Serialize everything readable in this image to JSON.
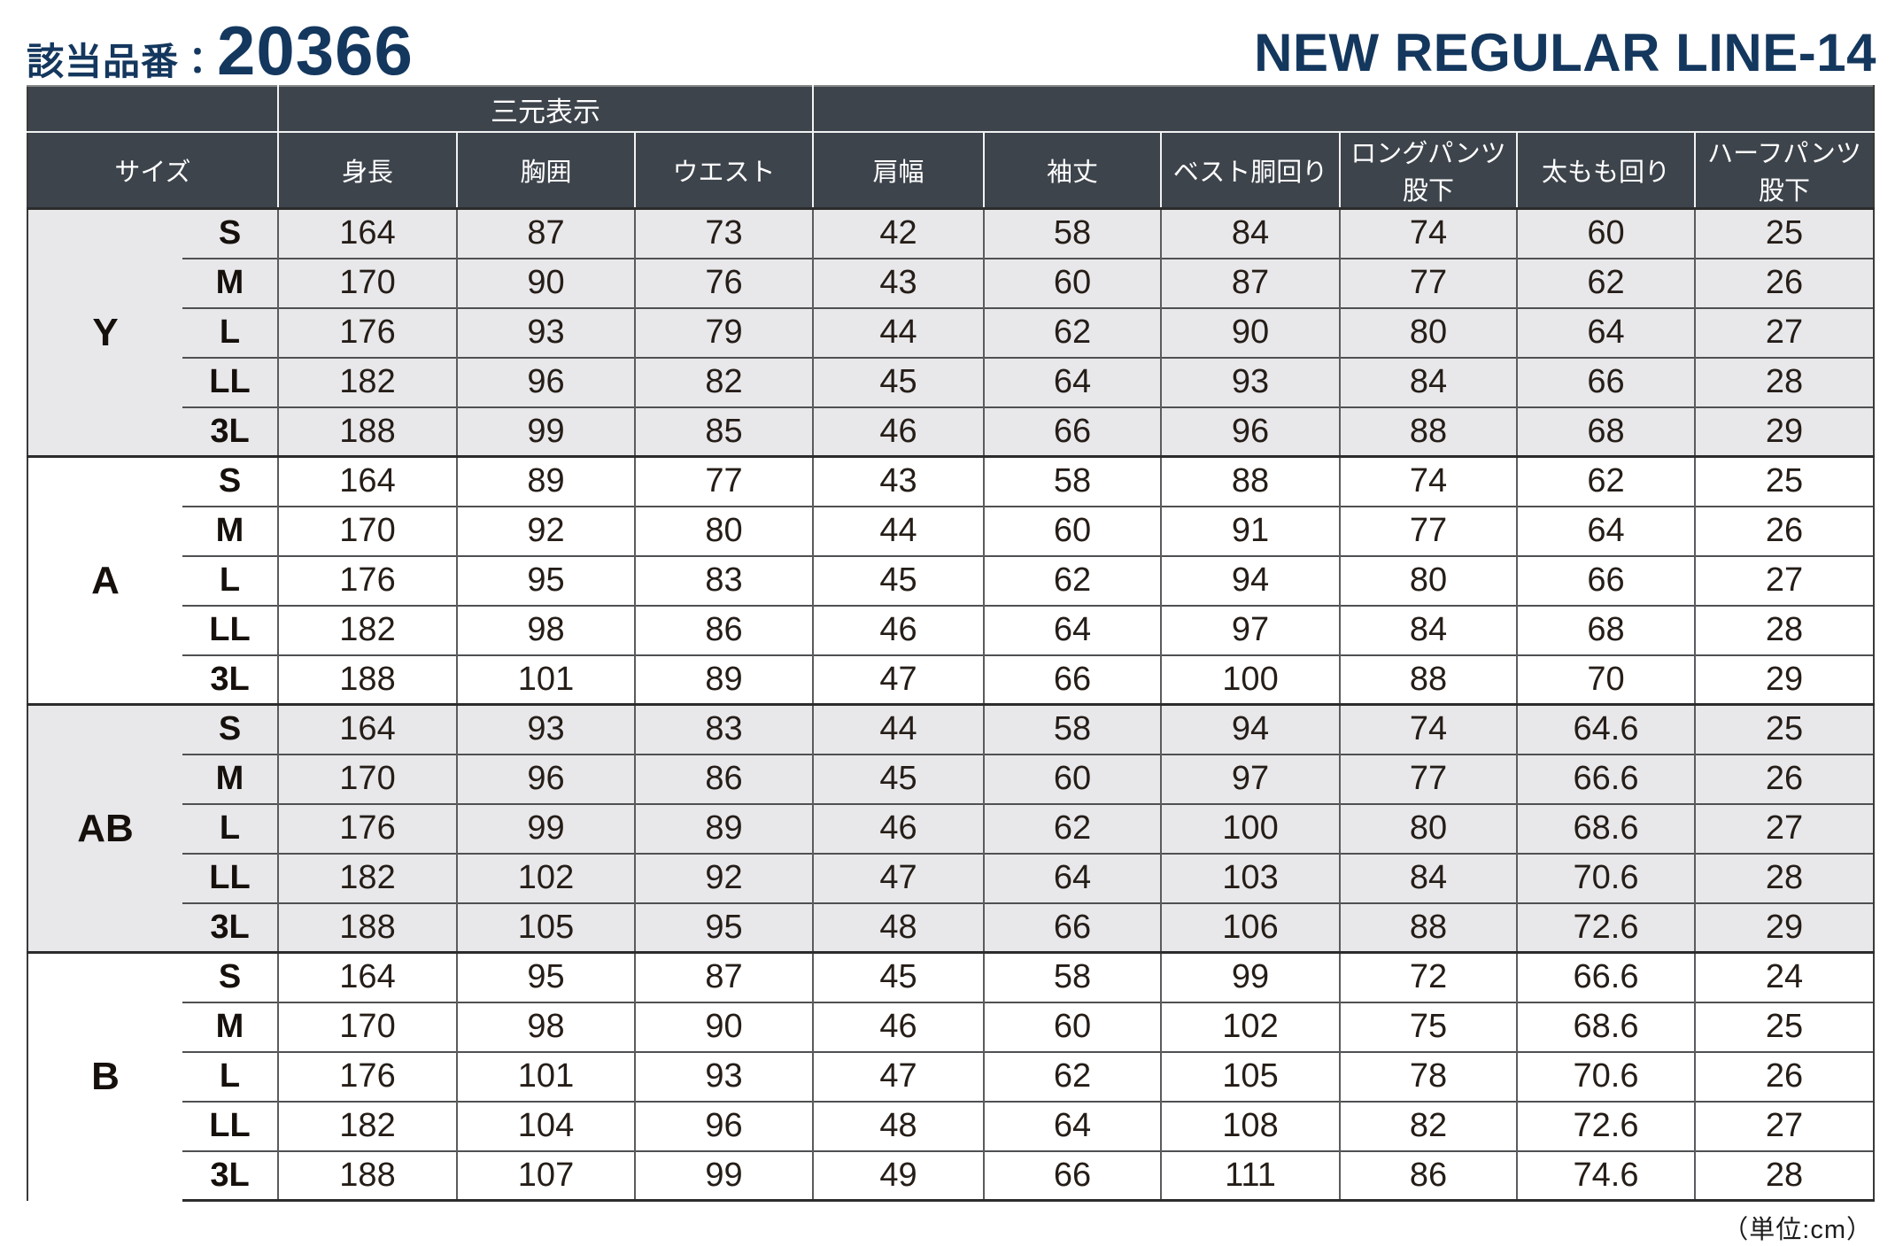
{
  "page": {
    "product_label": "該当品番：",
    "product_number": "20366",
    "line_title": "NEW REGULAR LINE-14",
    "unit_note": "（単位:cm）"
  },
  "table": {
    "span_header": "三元表示",
    "columns": [
      "サイズ",
      "身長",
      "胸囲",
      "ウエスト",
      "肩幅",
      "袖丈",
      "ベスト胴回り",
      "ロングパンツ股下",
      "太もも回り",
      "ハーフパンツ股下"
    ],
    "groups": [
      {
        "name": "Y",
        "rows": [
          {
            "size": "S",
            "values": [
              164,
              87,
              73,
              42,
              58,
              84,
              74,
              60,
              25
            ]
          },
          {
            "size": "M",
            "values": [
              170,
              90,
              76,
              43,
              60,
              87,
              77,
              62,
              26
            ]
          },
          {
            "size": "L",
            "values": [
              176,
              93,
              79,
              44,
              62,
              90,
              80,
              64,
              27
            ]
          },
          {
            "size": "LL",
            "values": [
              182,
              96,
              82,
              45,
              64,
              93,
              84,
              66,
              28
            ]
          },
          {
            "size": "3L",
            "values": [
              188,
              99,
              85,
              46,
              66,
              96,
              88,
              68,
              29
            ]
          }
        ]
      },
      {
        "name": "A",
        "rows": [
          {
            "size": "S",
            "values": [
              164,
              89,
              77,
              43,
              58,
              88,
              74,
              62,
              25
            ]
          },
          {
            "size": "M",
            "values": [
              170,
              92,
              80,
              44,
              60,
              91,
              77,
              64,
              26
            ]
          },
          {
            "size": "L",
            "values": [
              176,
              95,
              83,
              45,
              62,
              94,
              80,
              66,
              27
            ]
          },
          {
            "size": "LL",
            "values": [
              182,
              98,
              86,
              46,
              64,
              97,
              84,
              68,
              28
            ]
          },
          {
            "size": "3L",
            "values": [
              188,
              101,
              89,
              47,
              66,
              100,
              88,
              70,
              29
            ]
          }
        ]
      },
      {
        "name": "AB",
        "rows": [
          {
            "size": "S",
            "values": [
              164,
              93,
              83,
              44,
              58,
              94,
              74,
              64.6,
              25
            ]
          },
          {
            "size": "M",
            "values": [
              170,
              96,
              86,
              45,
              60,
              97,
              77,
              66.6,
              26
            ]
          },
          {
            "size": "L",
            "values": [
              176,
              99,
              89,
              46,
              62,
              100,
              80,
              68.6,
              27
            ]
          },
          {
            "size": "LL",
            "values": [
              182,
              102,
              92,
              47,
              64,
              103,
              84,
              70.6,
              28
            ]
          },
          {
            "size": "3L",
            "values": [
              188,
              105,
              95,
              48,
              66,
              106,
              88,
              72.6,
              29
            ]
          }
        ]
      },
      {
        "name": "B",
        "rows": [
          {
            "size": "S",
            "values": [
              164,
              95,
              87,
              45,
              58,
              99,
              72,
              66.6,
              24
            ]
          },
          {
            "size": "M",
            "values": [
              170,
              98,
              90,
              46,
              60,
              102,
              75,
              68.6,
              25
            ]
          },
          {
            "size": "L",
            "values": [
              176,
              101,
              93,
              47,
              62,
              105,
              78,
              70.6,
              26
            ]
          },
          {
            "size": "LL",
            "values": [
              182,
              104,
              96,
              48,
              64,
              108,
              82,
              72.6,
              27
            ]
          },
          {
            "size": "3L",
            "values": [
              188,
              107,
              99,
              49,
              66,
              111,
              86,
              74.6,
              28
            ]
          }
        ]
      }
    ]
  },
  "colors": {
    "title_navy": "#14375e",
    "header_bg": "#3e444c",
    "shaded_row_bg": "#e8e8eb"
  }
}
